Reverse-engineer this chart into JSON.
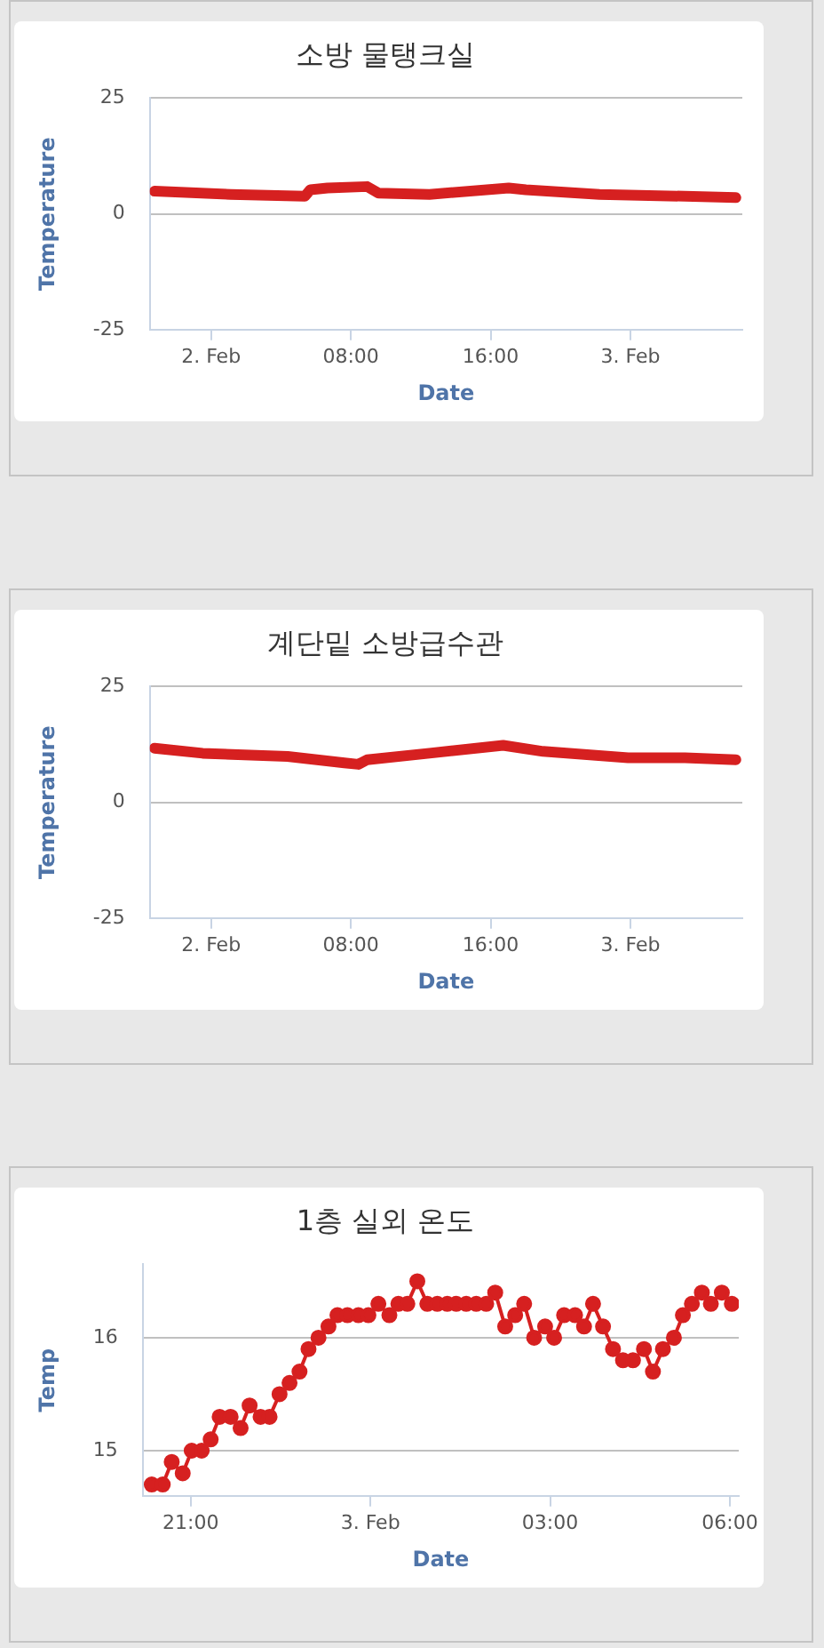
{
  "chart_data": [
    {
      "type": "line",
      "title": "소방 물탱크실",
      "xlabel": "Date",
      "ylabel": "Temperature",
      "x": [
        "--02-01T20:46",
        "--02-02T01:08",
        "--02-02T05:22",
        "--02-02T05:41",
        "--02-02T06:40",
        "--02-02T08:56",
        "--02-02T09:35",
        "--02-02T12:30",
        "--02-02T17:02",
        "--02-02T18:01",
        "--02-02T22:14",
        "--02-03T03:07",
        "--02-03T06:02"
      ],
      "series": [
        {
          "color": "#d62020",
          "values": [
            4.9,
            4.2,
            3.8,
            5.2,
            5.6,
            5.9,
            4.5,
            4.2,
            5.6,
            5.2,
            4.2,
            3.8,
            3.5
          ]
        }
      ],
      "xlim": [
        "--02-01T20:30",
        "--02-03T06:24"
      ],
      "ylim": [
        -25,
        25
      ],
      "xticks": [
        {
          "value": "--02-02T00:00",
          "label": "2. Feb"
        },
        {
          "value": "--02-02T08:00",
          "label": "08:00"
        },
        {
          "value": "--02-02T16:00",
          "label": "16:00"
        },
        {
          "value": "--02-03T00:00",
          "label": "3. Feb"
        }
      ],
      "yticks": [
        -25,
        0,
        25
      ],
      "grid": "y",
      "marker": "none"
    },
    {
      "type": "line",
      "title": "계단밑 소방급수관",
      "xlabel": "Date",
      "ylabel": "Temperature",
      "x": [
        "--02-01T20:46",
        "--02-01T23:31",
        "--02-02T04:23",
        "--02-02T07:38",
        "--02-02T08:26",
        "--02-02T08:56",
        "--02-02T12:30",
        "--02-02T16:43",
        "--02-02T19:00",
        "--02-02T23:52",
        "--02-03T03:07",
        "--02-03T06:02"
      ],
      "series": [
        {
          "color": "#d62020",
          "values": [
            11.7,
            10.6,
            9.9,
            8.5,
            8.2,
            9.2,
            10.6,
            12.3,
            11.0,
            9.6,
            9.6,
            9.2
          ]
        }
      ],
      "xlim": [
        "--02-01T20:30",
        "--02-03T06:24"
      ],
      "ylim": [
        -25,
        25
      ],
      "xticks": [
        {
          "value": "--02-02T00:00",
          "label": "2. Feb"
        },
        {
          "value": "--02-02T08:00",
          "label": "08:00"
        },
        {
          "value": "--02-02T16:00",
          "label": "16:00"
        },
        {
          "value": "--02-03T00:00",
          "label": "3. Feb"
        }
      ],
      "yticks": [
        -25,
        0,
        25
      ],
      "grid": "y",
      "marker": "none"
    },
    {
      "type": "line",
      "title": "1층 실외 온도",
      "xlabel": "Date",
      "ylabel": "Temp",
      "x": [
        "--02-02T20:21",
        "--02-02T20:32",
        "--02-02T20:41",
        "--02-02T20:52",
        "--02-02T21:01",
        "--02-02T21:11",
        "--02-02T21:20",
        "--02-02T21:29",
        "--02-02T21:40",
        "--02-02T21:50",
        "--02-02T21:59",
        "--02-02T22:10",
        "--02-02T22:19",
        "--02-02T22:29",
        "--02-02T22:39",
        "--02-02T22:49",
        "--02-02T22:58",
        "--02-02T23:08",
        "--02-02T23:18",
        "--02-02T23:27",
        "--02-02T23:37",
        "--02-02T23:48",
        "--02-02T23:58",
        "--02-03T00:08",
        "--02-03T00:19",
        "--02-03T00:28",
        "--02-03T00:37",
        "--02-03T00:47",
        "--02-03T00:57",
        "--02-03T01:07",
        "--02-03T01:17",
        "--02-03T01:26",
        "--02-03T01:36",
        "--02-03T01:46",
        "--02-03T01:56",
        "--02-03T02:05",
        "--02-03T02:15",
        "--02-03T02:25",
        "--02-03T02:34",
        "--02-03T02:44",
        "--02-03T02:55",
        "--02-03T03:04",
        "--02-03T03:14",
        "--02-03T03:25",
        "--02-03T03:34",
        "--02-03T03:43",
        "--02-03T03:53",
        "--02-03T04:03",
        "--02-03T04:13",
        "--02-03T04:23",
        "--02-03T04:34",
        "--02-03T04:43",
        "--02-03T04:53",
        "--02-03T05:04",
        "--02-03T05:13",
        "--02-03T05:22",
        "--02-03T05:32",
        "--02-03T05:41",
        "--02-03T05:52",
        "--02-03T06:02"
      ],
      "series": [
        {
          "color": "#d62020",
          "values": [
            14.7,
            14.7,
            14.9,
            14.8,
            15.0,
            15.0,
            15.1,
            15.3,
            15.3,
            15.2,
            15.4,
            15.3,
            15.3,
            15.5,
            15.6,
            15.7,
            15.9,
            16.0,
            16.1,
            16.2,
            16.2,
            16.2,
            16.2,
            16.3,
            16.2,
            16.3,
            16.3,
            16.5,
            16.3,
            16.3,
            16.3,
            16.3,
            16.3,
            16.3,
            16.3,
            16.4,
            16.1,
            16.2,
            16.3,
            16.0,
            16.1,
            16.0,
            16.2,
            16.2,
            16.1,
            16.3,
            16.1,
            15.9,
            15.8,
            15.8,
            15.9,
            15.7,
            15.9,
            16.0,
            16.2,
            16.3,
            16.4,
            16.3,
            16.4,
            16.3
          ]
        }
      ],
      "xlim": [
        "--02-02T20:12",
        "--02-03T06:09"
      ],
      "ylim": [
        14.6,
        16.65
      ],
      "xticks": [
        {
          "value": "--02-02T21:00",
          "label": "21:00"
        },
        {
          "value": "--02-03T00:00",
          "label": "3. Feb"
        },
        {
          "value": "--02-03T03:00",
          "label": "03:00"
        },
        {
          "value": "--02-03T06:00",
          "label": "06:00"
        }
      ],
      "yticks": [
        15,
        16
      ],
      "grid": "y",
      "marker": "circle"
    }
  ]
}
